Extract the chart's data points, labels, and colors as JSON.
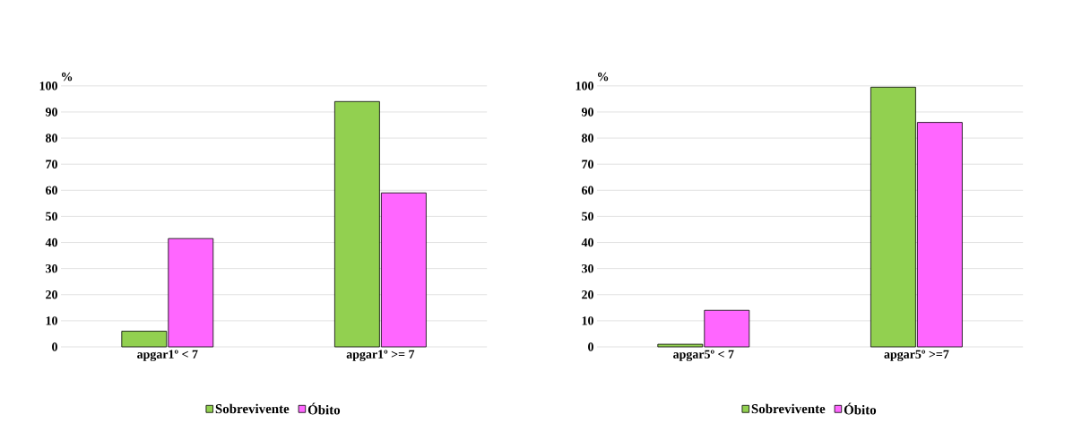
{
  "chart_data": [
    {
      "type": "bar",
      "ylabel": "%",
      "categories": [
        "apgar1º  < 7",
        "apgar1º  >= 7"
      ],
      "series": [
        {
          "name": "Sobrevivente",
          "color": "#92d050",
          "values": [
            6,
            94
          ]
        },
        {
          "name": "Óbito",
          "color": "#ff66ff",
          "values": [
            41.5,
            59
          ]
        }
      ],
      "ylim": [
        0,
        100
      ],
      "yticks": [
        0,
        10,
        20,
        30,
        40,
        50,
        60,
        70,
        80,
        90,
        100
      ],
      "grid": "y",
      "legend": "bottom"
    },
    {
      "type": "bar",
      "ylabel": "%",
      "categories": [
        "apgar5º < 7",
        "apgar5º >=7"
      ],
      "series": [
        {
          "name": "Sobrevivente",
          "color": "#92d050",
          "values": [
            1,
            99.5
          ]
        },
        {
          "name": "Óbito",
          "color": "#ff66ff",
          "values": [
            14,
            86
          ]
        }
      ],
      "ylim": [
        0,
        100
      ],
      "yticks": [
        0,
        10,
        20,
        30,
        40,
        50,
        60,
        70,
        80,
        90,
        100
      ],
      "grid": "y",
      "legend": "bottom"
    }
  ]
}
